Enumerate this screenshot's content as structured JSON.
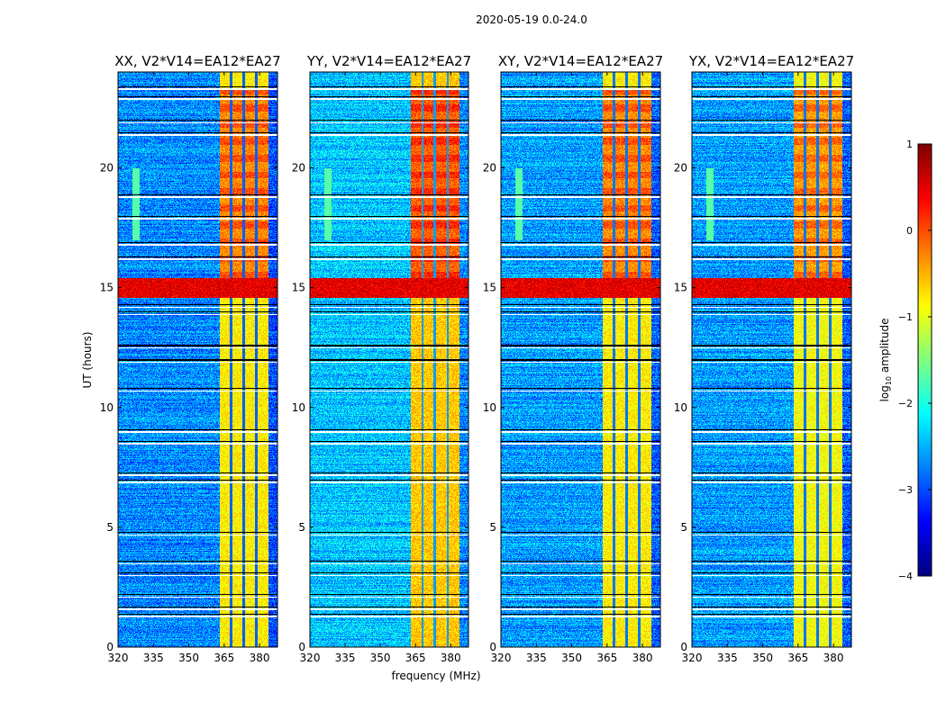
{
  "chart_data": {
    "type": "heatmap",
    "suptitle": "2020-05-19 0.0-24.0",
    "xlabel": "frequency (MHz)",
    "ylabel": "UT (hours)",
    "xlim": [
      320,
      387.6
    ],
    "ylim": [
      0,
      24
    ],
    "xticks": [
      "320",
      "335",
      "350",
      "365",
      "380"
    ],
    "xtick_values": [
      320,
      335,
      350,
      365,
      380
    ],
    "yticks": [
      "0",
      "5",
      "10",
      "15",
      "20"
    ],
    "ytick_values": [
      0,
      5,
      10,
      15,
      20
    ],
    "panels": [
      {
        "title": "XX, V2*V14=EA12*EA27",
        "band_level": -0.8,
        "baseline": -2.7
      },
      {
        "title": "YY, V2*V14=EA12*EA27",
        "band_level": -0.6,
        "baseline": -2.4
      },
      {
        "title": "XY, V2*V14=EA12*EA27",
        "band_level": -0.8,
        "baseline": -2.6
      },
      {
        "title": "YX, V2*V14=EA12*EA27",
        "band_level": -0.9,
        "baseline": -2.6
      }
    ],
    "features": {
      "bright_band_mhz": [
        362.8,
        383.4
      ],
      "band_gaps_mhz": [
        367.8,
        373.1,
        378.5
      ],
      "strong_band_hours": [
        15.4,
        23.3
      ],
      "rfi_burst_hours": [
        14.6,
        15.4
      ],
      "flagged_rows_hours": [
        1.3,
        1.6,
        2.1,
        3.0,
        3.5,
        4.7,
        6.9,
        7.2,
        8.5,
        9.0,
        10.7,
        11.9,
        12.5,
        13.9,
        14.2,
        16.2,
        16.8,
        17.9,
        18.8,
        21.4,
        21.9,
        22.9,
        23.3
      ]
    },
    "colorbar": {
      "label": "log",
      "label_sub": "10",
      "label_rest": " amplitude",
      "colormap": "jet",
      "range": [
        -4,
        1
      ],
      "ticks": [
        "1",
        "0",
        "−1",
        "−2",
        "−3",
        "−4"
      ],
      "tick_values": [
        1,
        0,
        -1,
        -2,
        -3,
        -4
      ]
    }
  }
}
